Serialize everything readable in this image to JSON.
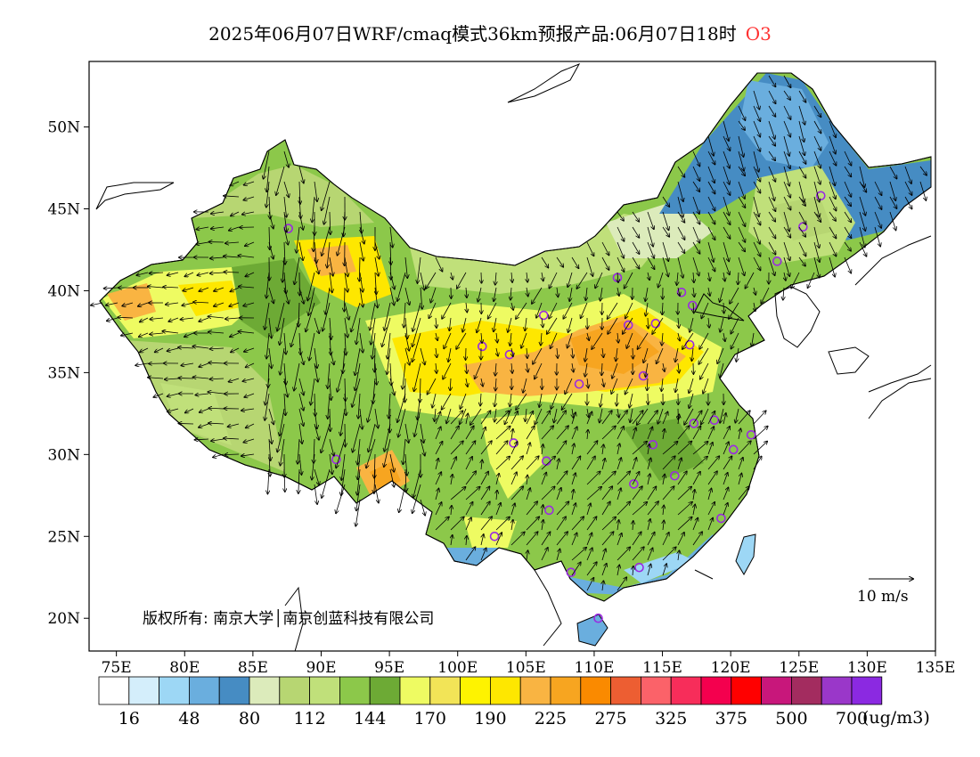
{
  "title": {
    "text": "2025年06月07日WRF/cmaq模式36km预报产品:06月07日18时",
    "species": "O3",
    "species_color": "#ff3030"
  },
  "map": {
    "lon_range": [
      73,
      135
    ],
    "lat_range": [
      18,
      54
    ],
    "lat_labels": [
      "50N",
      "45N",
      "40N",
      "35N",
      "30N",
      "25N",
      "20N"
    ],
    "lat_values": [
      50,
      45,
      40,
      35,
      30,
      25,
      20
    ],
    "lon_labels": [
      "75E",
      "80E",
      "85E",
      "90E",
      "95E",
      "100E",
      "105E",
      "110E",
      "115E",
      "120E",
      "125E",
      "130E",
      "135E"
    ],
    "lon_values": [
      75,
      80,
      85,
      90,
      95,
      100,
      105,
      110,
      115,
      120,
      125,
      130,
      135
    ],
    "land_color": "#7fc34e",
    "ocean_color": "#ffffff",
    "wind_reference": "10 m/s"
  },
  "copyright": "版权所有: 南京大学│南京创蓝科技有限公司",
  "colorbar": {
    "colors": [
      "#ffffff",
      "#d4eefb",
      "#9dd7f5",
      "#6aaede",
      "#468cc3",
      "#dcebbb",
      "#b7d672",
      "#c0e07a",
      "#8cc84a",
      "#6daa35",
      "#eefb62",
      "#f2e457",
      "#fef300",
      "#fee700",
      "#f9b442",
      "#f7a520",
      "#fa8a00",
      "#ed5e32",
      "#fb6269",
      "#f72d5a",
      "#f4004e",
      "#ff0000",
      "#c8177b",
      "#a32c5f",
      "#9a37c9",
      "#8b29e1"
    ],
    "labels": [
      "16",
      "48",
      "80",
      "112",
      "144",
      "170",
      "190",
      "225",
      "275",
      "325",
      "375",
      "500",
      "700"
    ],
    "units": "(ug/m3)"
  },
  "stations": [
    [
      87.6,
      43.8
    ],
    [
      101.8,
      36.6
    ],
    [
      103.8,
      36.1
    ],
    [
      106.3,
      38.5
    ],
    [
      111.7,
      40.8
    ],
    [
      112.5,
      37.9
    ],
    [
      114.5,
      38.0
    ],
    [
      116.4,
      39.9
    ],
    [
      117.2,
      39.1
    ],
    [
      117.0,
      36.7
    ],
    [
      113.6,
      34.8
    ],
    [
      108.9,
      34.3
    ],
    [
      104.1,
      30.7
    ],
    [
      106.5,
      29.6
    ],
    [
      106.7,
      26.6
    ],
    [
      102.7,
      25.0
    ],
    [
      108.3,
      22.8
    ],
    [
      110.3,
      20.0
    ],
    [
      113.3,
      23.1
    ],
    [
      112.9,
      28.2
    ],
    [
      114.3,
      30.6
    ],
    [
      115.9,
      28.7
    ],
    [
      117.3,
      31.9
    ],
    [
      118.8,
      32.1
    ],
    [
      120.2,
      30.3
    ],
    [
      121.5,
      31.2
    ],
    [
      119.3,
      26.1
    ],
    [
      91.1,
      29.7
    ],
    [
      123.4,
      41.8
    ],
    [
      125.3,
      43.9
    ],
    [
      126.6,
      45.8
    ]
  ]
}
